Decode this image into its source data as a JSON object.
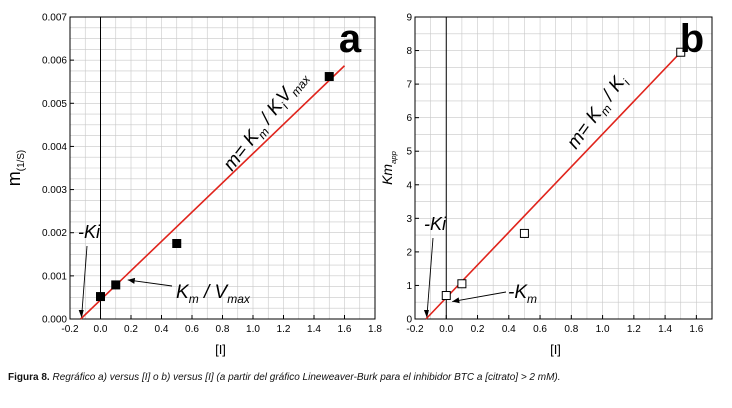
{
  "caption": {
    "label": "Figura 8.",
    "text": "Regráfico a) versus [I] o b) versus [I] (a partir del gráfico Lineweaver-Burk para el inhibidor BTC a [citrato] > 2 mM)."
  },
  "chart_data": [
    {
      "panel_label": "a",
      "type": "scatter",
      "xlabel": "[I]",
      "ylabel": "m",
      "ylabel_sub": "(1/S)",
      "xlim": [
        -0.2,
        1.8
      ],
      "ylim": [
        0,
        0.007
      ],
      "xticks": [
        "-0.2",
        "0.0",
        "0.2",
        "0.4",
        "0.6",
        "0.8",
        "1.0",
        "1.2",
        "1.4",
        "1.6",
        "1.8"
      ],
      "yticks": [
        "0.000",
        "0.001",
        "0.002",
        "0.003",
        "0.004",
        "0.005",
        "0.006",
        "0.007"
      ],
      "grid": true,
      "marker": "filled-square",
      "line_color": "#e0241c",
      "points": [
        {
          "x": 0.0,
          "y": 0.00052
        },
        {
          "x": 0.1,
          "y": 0.00079
        },
        {
          "x": 0.5,
          "y": 0.00175
        },
        {
          "x": 1.5,
          "y": 0.00562
        }
      ],
      "fit_line": {
        "x": [
          -0.13,
          1.6
        ],
        "y": [
          0.0,
          0.00587
        ]
      },
      "annotations": {
        "ki": "-Ki",
        "slope_eq": {
          "lead": "m= K",
          "a": "m",
          "b": " / K",
          "c": "i",
          "d": "V",
          "e": "max"
        },
        "intercept": {
          "lead": "K",
          "a": "m",
          "b": " / V",
          "c": "max"
        }
      }
    },
    {
      "panel_label": "b",
      "type": "scatter",
      "xlabel": "[I]",
      "ylabel": "Km",
      "ylabel_sub": "app",
      "xlim": [
        -0.2,
        1.7
      ],
      "ylim": [
        0,
        9
      ],
      "xticks": [
        "-0.2",
        "0.0",
        "0.2",
        "0.4",
        "0.6",
        "0.8",
        "1.0",
        "1.2",
        "1.4",
        "1.6"
      ],
      "yticks": [
        "0",
        "1",
        "2",
        "3",
        "4",
        "5",
        "6",
        "7",
        "8",
        "9"
      ],
      "grid": true,
      "marker": "open-square",
      "line_color": "#e0241c",
      "points": [
        {
          "x": 0.0,
          "y": 0.7
        },
        {
          "x": 0.1,
          "y": 1.05
        },
        {
          "x": 0.5,
          "y": 2.55
        },
        {
          "x": 1.5,
          "y": 7.95
        }
      ],
      "fit_line": {
        "x": [
          -0.13,
          1.5
        ],
        "y": [
          0.0,
          7.95
        ]
      },
      "annotations": {
        "ki": "-Ki",
        "slope_eq": {
          "lead": "m= K",
          "a": "m",
          "b": " / K",
          "c": "i"
        },
        "intercept": {
          "lead": "-K",
          "a": "m"
        }
      }
    }
  ]
}
